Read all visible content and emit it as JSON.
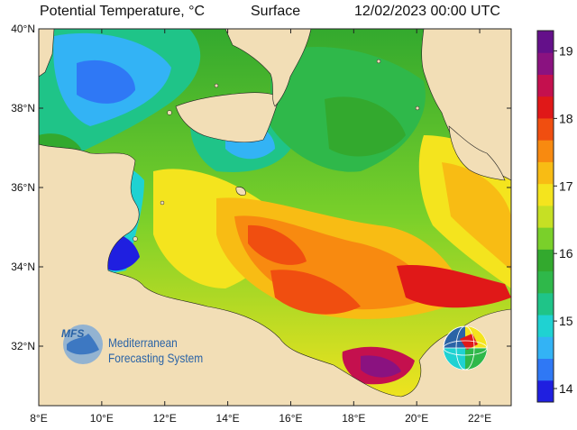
{
  "header": {
    "title": "Potential Temperature, °C",
    "layer": "Surface",
    "datetime": "12/02/2023 00:00 UTC"
  },
  "map": {
    "lon_range": [
      8,
      23
    ],
    "lat_range": [
      30.5,
      40
    ],
    "lon_ticks": [
      "8°E",
      "10°E",
      "12°E",
      "14°E",
      "16°E",
      "18°E",
      "20°E",
      "22°E"
    ],
    "lat_ticks": [
      "40°N",
      "38°N",
      "36°N",
      "34°N",
      "32°N"
    ],
    "land_color": "#f2deb6"
  },
  "colorbar": {
    "range": [
      13.8,
      19.3
    ],
    "tick_labels": [
      "19",
      "18",
      "17",
      "16",
      "15",
      "14"
    ],
    "colors": [
      "#1f1fe0",
      "#2f78f5",
      "#33b3f5",
      "#1fd2d2",
      "#1fc488",
      "#2fb84a",
      "#33a92e",
      "#7ad02a",
      "#c6e024",
      "#f4e41e",
      "#f8bc14",
      "#f88a10",
      "#f04e10",
      "#e01818",
      "#c4104e",
      "#8a1280",
      "#64108a"
    ]
  },
  "logo": {
    "badge": "MFS",
    "line1": "Mediterranean",
    "line2": "Forecasting System"
  }
}
